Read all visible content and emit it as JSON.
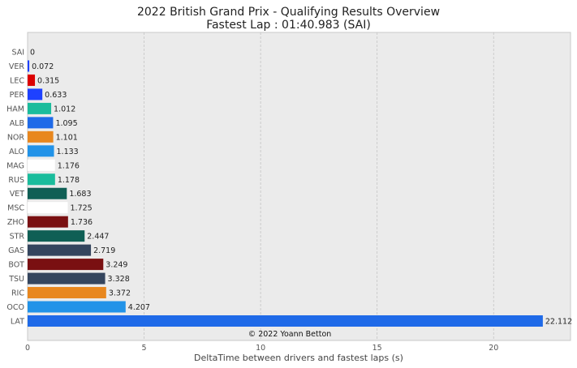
{
  "chart_data": {
    "type": "bar",
    "orientation": "horizontal",
    "title": "2022 British Grand Prix - Qualifying Results Overview",
    "subtitle": "Fastest Lap : 01:40.983 (SAI)",
    "xlabel": "DeltaTime between drivers and fastest laps (s)",
    "ylabel": "",
    "xlim": [
      0,
      23.3
    ],
    "xticks": [
      0,
      5,
      10,
      15,
      20
    ],
    "grid": true,
    "credit": "© 2022 Yoann Betton",
    "categories": [
      "SAI",
      "VER",
      "LEC",
      "PER",
      "HAM",
      "ALB",
      "NOR",
      "ALO",
      "MAG",
      "RUS",
      "VET",
      "MSC",
      "ZHO",
      "STR",
      "GAS",
      "BOT",
      "TSU",
      "RIC",
      "OCO",
      "LAT"
    ],
    "values": [
      0,
      0.072,
      0.315,
      0.633,
      1.012,
      1.095,
      1.101,
      1.133,
      1.176,
      1.178,
      1.683,
      1.725,
      1.736,
      2.447,
      2.719,
      3.249,
      3.328,
      3.372,
      4.207,
      22.112
    ],
    "value_labels": [
      "0",
      "0.072",
      "0.315",
      "0.633",
      "1.012",
      "1.095",
      "1.101",
      "1.133",
      "1.176",
      "1.178",
      "1.683",
      "1.725",
      "1.736",
      "2.447",
      "2.719",
      "3.249",
      "3.328",
      "3.372",
      "4.207",
      "22.112"
    ],
    "colors": [
      "#ed1c24",
      "#1e41ff",
      "#dc0000",
      "#1e41ff",
      "#1abc9c",
      "#1f6ae8",
      "#e8871e",
      "#2293e8",
      "#ffffff",
      "#1abc9c",
      "#0f5f55",
      "#ffffff",
      "#7a1012",
      "#0f5f55",
      "#34455e",
      "#7a1012",
      "#34455e",
      "#e8871e",
      "#2293e8",
      "#1f6ae8"
    ]
  }
}
